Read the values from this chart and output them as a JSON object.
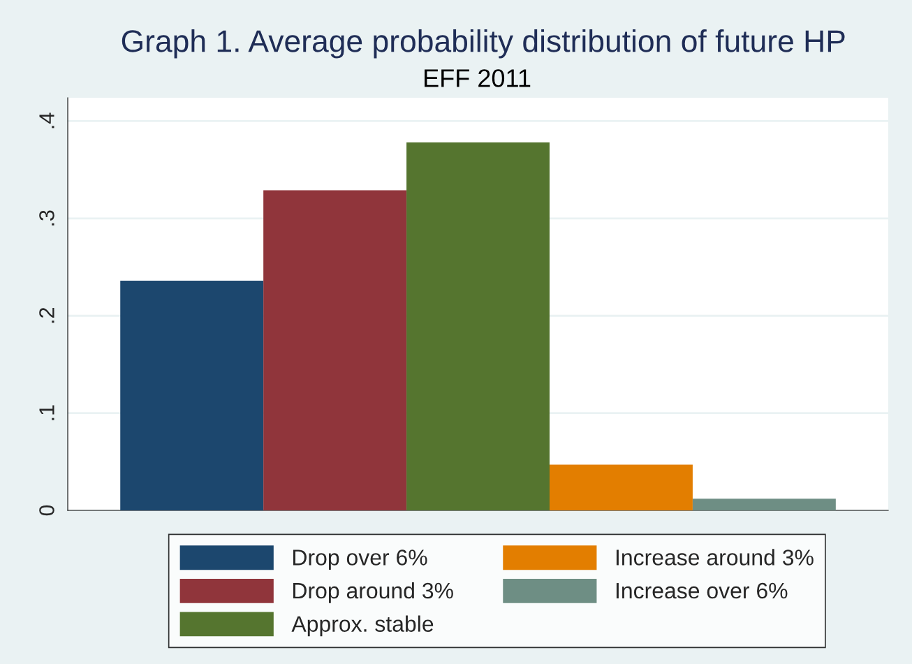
{
  "chart_data": {
    "type": "bar",
    "title": "Graph 1. Average probability distribution of future HP",
    "subtitle": "EFF 2011",
    "categories": [
      null
    ],
    "series": [
      {
        "name": "Drop over 6%",
        "color": "#1c476e",
        "values": [
          0.236
        ]
      },
      {
        "name": "Drop around 3%",
        "color": "#90353b",
        "values": [
          0.329
        ]
      },
      {
        "name": "Approx. stable",
        "color": "#55752f",
        "values": [
          0.378
        ]
      },
      {
        "name": "Increase around 3%",
        "color": "#e37e00",
        "values": [
          0.047
        ]
      },
      {
        "name": "Increase over 6%",
        "color": "#6e8e84",
        "values": [
          0.012
        ]
      }
    ],
    "ylim": [
      0,
      0.424
    ],
    "yticks": [
      0,
      {
        "value": 0.1,
        "label": ".1"
      },
      {
        "value": 0.2,
        "label": ".2"
      },
      {
        "value": 0.3,
        "label": ".3"
      },
      {
        "value": 0.4,
        "label": ".4"
      }
    ],
    "grid": "y",
    "legend": "bottom"
  }
}
